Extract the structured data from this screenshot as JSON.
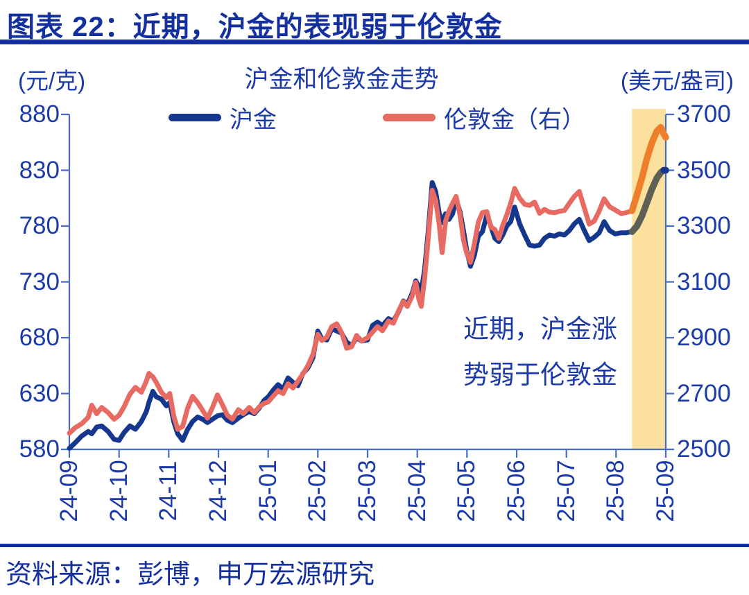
{
  "header": {
    "title": "图表 22：近期，沪金的表现弱于伦敦金"
  },
  "footer": {
    "source": "资料来源：彭博，申万宏源研究"
  },
  "colors": {
    "accent_navy": "#14309E",
    "chart_text": "#1C3AA8",
    "axis_line": "#466BC8",
    "hujin_line": "#15388E",
    "london_line": "#E76A63",
    "highlight_hujin": "#5D6153",
    "highlight_london": "#EE7E2B",
    "highlight_band": "#FBE09E"
  },
  "chart_data": {
    "type": "line",
    "title": "沪金和伦敦金走势",
    "left_axis_label": "(元/克)",
    "right_axis_label": "(美元/盎司)",
    "legend_position": "top",
    "grid": false,
    "left_ticks": [
      880,
      830,
      780,
      730,
      680,
      630,
      580
    ],
    "right_ticks": [
      3700,
      3500,
      3300,
      3100,
      2900,
      2700,
      2500
    ],
    "left_range": [
      580,
      880
    ],
    "right_range": [
      2500,
      3700
    ],
    "x_ticks": [
      "24-09",
      "24-10",
      "24-11",
      "24-12",
      "25-01",
      "25-02",
      "25-03",
      "25-04",
      "25-05",
      "25-06",
      "25-07",
      "25-08",
      "25-09"
    ],
    "annotation": {
      "lines": [
        "近期，沪金涨",
        "势弱于伦敦金"
      ]
    },
    "highlight": {
      "label": "近期",
      "start_month": 11.32,
      "end_month": 12
    },
    "x_months": [
      0,
      0.12,
      0.25,
      0.38,
      0.45,
      0.55,
      0.65,
      0.78,
      0.9,
      1,
      1.1,
      1.22,
      1.33,
      1.45,
      1.55,
      1.6,
      1.68,
      1.75,
      1.85,
      1.95,
      2.02,
      2.1,
      2.18,
      2.28,
      2.38,
      2.48,
      2.58,
      2.68,
      2.78,
      2.88,
      2.98,
      3.08,
      3.18,
      3.28,
      3.4,
      3.5,
      3.62,
      3.72,
      3.82,
      3.92,
      4,
      4.1,
      4.2,
      4.3,
      4.4,
      4.5,
      4.6,
      4.7,
      4.8,
      4.9,
      5,
      5.08,
      5.18,
      5.28,
      5.38,
      5.48,
      5.58,
      5.68,
      5.78,
      5.88,
      6,
      6.1,
      6.2,
      6.3,
      6.42,
      6.52,
      6.62,
      6.72,
      6.8,
      6.9,
      6.97,
      7.03,
      7.08,
      7.15,
      7.22,
      7.3,
      7.37,
      7.44,
      7.5,
      7.57,
      7.64,
      7.71,
      7.78,
      7.86,
      7.93,
      8,
      8.07,
      8.15,
      8.23,
      8.31,
      8.4,
      8.48,
      8.56,
      8.64,
      8.72,
      8.8,
      8.88,
      8.96,
      9.06,
      9.16,
      9.26,
      9.36,
      9.46,
      9.56,
      9.66,
      9.76,
      9.86,
      9.96,
      10.06,
      10.16,
      10.26,
      10.36,
      10.46,
      10.56,
      10.66,
      10.76,
      10.87,
      10.98,
      11.1,
      11.2,
      11.32,
      11.42,
      11.52,
      11.62,
      11.72,
      11.82,
      11.9,
      11.96,
      12
    ],
    "series": [
      {
        "id": "hujin",
        "name": "沪金",
        "axis": "left",
        "unit": "元/克",
        "color": "#15388E",
        "highlight_color": "#5D6153",
        "values": [
          581,
          586,
          592,
          596,
          594,
          600,
          601,
          596,
          589,
          588,
          595,
          601,
          598,
          605,
          614,
          622,
          632,
          627,
          625,
          619,
          622,
          605,
          594,
          588,
          598,
          605,
          609,
          607,
          604,
          607,
          610,
          611,
          606,
          604,
          608,
          611,
          614,
          612,
          617,
          624,
          627,
          633,
          638,
          634,
          644,
          640,
          637,
          648,
          653,
          662,
          686,
          679,
          678,
          688,
          686,
          684,
          676,
          673,
          680,
          677,
          678,
          691,
          694,
          691,
          697,
          695,
          703,
          713,
          710,
          720,
          731,
          726,
          721,
          742,
          775,
          819,
          811,
          792,
          783,
          791,
          786,
          791,
          804,
          793,
          776,
          757,
          744,
          754,
          771,
          775,
          790,
          780,
          769,
          766,
          772,
          780,
          784,
          797,
          782,
          772,
          763,
          762,
          763,
          769,
          772,
          771,
          773,
          772,
          776,
          782,
          786,
          776,
          767,
          770,
          774,
          784,
          776,
          773,
          774,
          774,
          775,
          780,
          789,
          801,
          813,
          823,
          828,
          830,
          830
        ]
      },
      {
        "id": "london",
        "name": "伦敦金（右）",
        "axis": "right",
        "unit": "美元/盎司",
        "color": "#E76A63",
        "highlight_color": "#EE7E2B",
        "values": [
          2558,
          2578,
          2592,
          2615,
          2658,
          2628,
          2650,
          2632,
          2608,
          2622,
          2652,
          2698,
          2722,
          2705,
          2745,
          2772,
          2760,
          2740,
          2705,
          2685,
          2700,
          2620,
          2572,
          2582,
          2648,
          2690,
          2668,
          2640,
          2612,
          2650,
          2695,
          2660,
          2622,
          2608,
          2642,
          2628,
          2650,
          2632,
          2652,
          2665,
          2670,
          2690,
          2710,
          2700,
          2735,
          2720,
          2745,
          2770,
          2800,
          2840,
          2912,
          2890,
          2902,
          2940,
          2950,
          2918,
          2862,
          2868,
          2908,
          2888,
          2900,
          2920,
          2940,
          2925,
          2960,
          2952,
          2995,
          3030,
          3012,
          3050,
          3098,
          3040,
          3012,
          3115,
          3255,
          3428,
          3392,
          3308,
          3205,
          3318,
          3355,
          3382,
          3406,
          3340,
          3250,
          3200,
          3170,
          3238,
          3315,
          3348,
          3352,
          3296,
          3288,
          3256,
          3302,
          3340,
          3382,
          3435,
          3400,
          3378,
          3374,
          3386,
          3346,
          3360,
          3350,
          3348,
          3353,
          3356,
          3382,
          3406,
          3424,
          3365,
          3307,
          3318,
          3354,
          3398,
          3369,
          3358,
          3345,
          3348,
          3355,
          3412,
          3472,
          3542,
          3598,
          3640,
          3654,
          3630,
          3618
        ]
      }
    ]
  }
}
